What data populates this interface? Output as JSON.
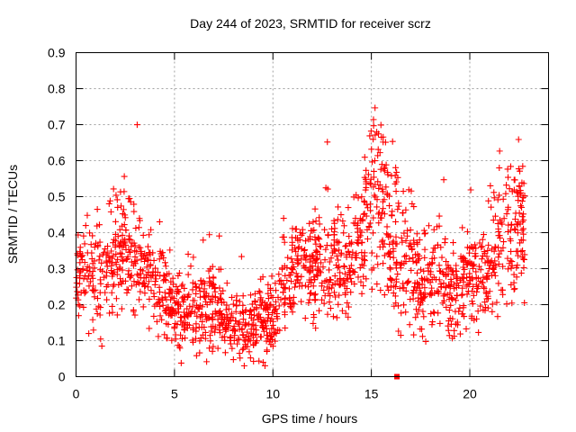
{
  "chart_data": {
    "type": "scatter",
    "title": "Day 244 of 2023, SRMTID for receiver scrz",
    "xlabel": "GPS time / hours",
    "ylabel": "SRMTID / TECUs",
    "xlim": [
      0,
      24
    ],
    "ylim": [
      0,
      0.9
    ],
    "xticks": [
      0,
      5,
      10,
      15,
      20
    ],
    "xtick_labels": [
      "0",
      "5",
      "10",
      "15",
      "20"
    ],
    "yticks": [
      0,
      0.1,
      0.2,
      0.3,
      0.4,
      0.5,
      0.6,
      0.7,
      0.8,
      0.9
    ],
    "ytick_labels": [
      "0",
      "0.1",
      "0.2",
      "0.3",
      "0.4",
      "0.5",
      "0.6",
      "0.7",
      "0.8",
      "0.9"
    ],
    "grid": true,
    "marker": "plus",
    "color": "#ff0000",
    "gap_marker": {
      "x": 16.3,
      "y": 0.0
    },
    "series": [
      {
        "name": "SRMTID",
        "profile": [
          [
            0.0,
            0.27,
            0.09
          ],
          [
            0.5,
            0.28,
            0.1
          ],
          [
            1.0,
            0.25,
            0.1
          ],
          [
            1.5,
            0.3,
            0.09
          ],
          [
            2.0,
            0.32,
            0.1
          ],
          [
            2.5,
            0.35,
            0.11
          ],
          [
            3.0,
            0.34,
            0.1
          ],
          [
            3.5,
            0.3,
            0.09
          ],
          [
            4.0,
            0.27,
            0.09
          ],
          [
            4.5,
            0.22,
            0.08
          ],
          [
            5.0,
            0.19,
            0.07
          ],
          [
            5.5,
            0.18,
            0.07
          ],
          [
            6.0,
            0.18,
            0.07
          ],
          [
            6.5,
            0.2,
            0.08
          ],
          [
            7.0,
            0.2,
            0.08
          ],
          [
            7.5,
            0.16,
            0.07
          ],
          [
            8.0,
            0.14,
            0.06
          ],
          [
            8.5,
            0.14,
            0.06
          ],
          [
            9.0,
            0.14,
            0.06
          ],
          [
            9.5,
            0.15,
            0.06
          ],
          [
            10.0,
            0.17,
            0.06
          ],
          [
            10.5,
            0.24,
            0.08
          ],
          [
            11.0,
            0.29,
            0.09
          ],
          [
            11.5,
            0.3,
            0.09
          ],
          [
            12.0,
            0.31,
            0.09
          ],
          [
            12.5,
            0.31,
            0.1
          ],
          [
            13.0,
            0.32,
            0.1
          ],
          [
            13.5,
            0.3,
            0.1
          ],
          [
            14.0,
            0.3,
            0.1
          ],
          [
            14.5,
            0.38,
            0.12
          ],
          [
            15.0,
            0.52,
            0.16
          ],
          [
            15.5,
            0.5,
            0.16
          ],
          [
            16.0,
            0.37,
            0.14
          ],
          [
            16.5,
            0.33,
            0.14
          ],
          [
            17.0,
            0.34,
            0.15
          ],
          [
            17.5,
            0.27,
            0.1
          ],
          [
            18.0,
            0.26,
            0.1
          ],
          [
            18.5,
            0.27,
            0.1
          ],
          [
            19.0,
            0.25,
            0.1
          ],
          [
            19.5,
            0.24,
            0.09
          ],
          [
            20.0,
            0.26,
            0.09
          ],
          [
            20.5,
            0.28,
            0.1
          ],
          [
            21.0,
            0.3,
            0.1
          ],
          [
            21.5,
            0.34,
            0.11
          ],
          [
            22.0,
            0.4,
            0.12
          ],
          [
            22.5,
            0.43,
            0.12
          ],
          [
            22.8,
            0.42,
            0.12
          ]
        ],
        "samples": 1800,
        "x_range": [
          0,
          22.8
        ]
      }
    ]
  }
}
